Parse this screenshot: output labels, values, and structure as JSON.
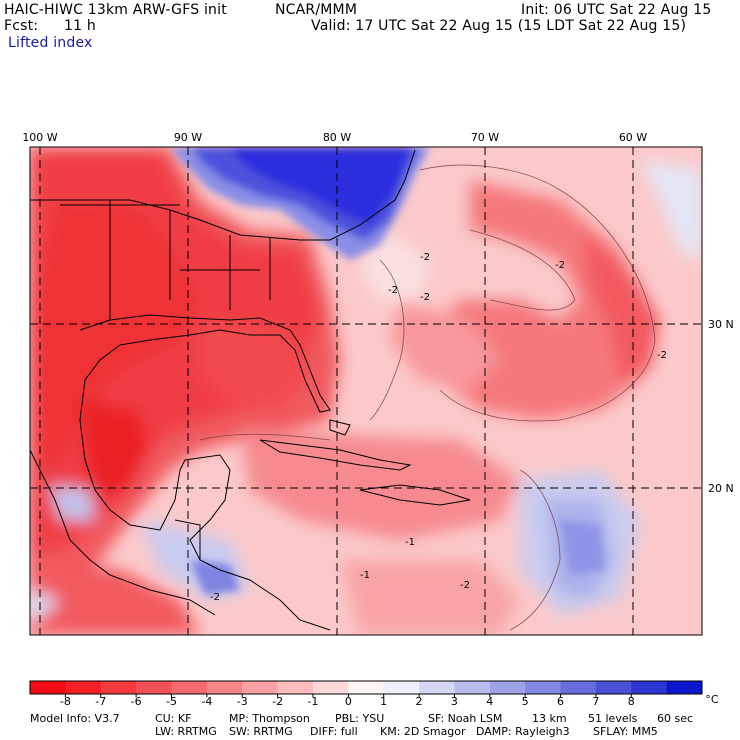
{
  "header": {
    "model_title": "HAIC-HIWC 13km ARW-GFS init",
    "agency": "NCAR/MMM",
    "init": "Init: 06 UTC Sat 22 Aug 15",
    "fcst_label": "Fcst:",
    "fcst_value": "11 h",
    "valid": "Valid: 17 UTC Sat 22 Aug 15 (15 LDT Sat 22 Aug 15)",
    "field": "Lifted index"
  },
  "map": {
    "lon_labels": [
      "100 W",
      "90 W",
      "80 W",
      "70 W",
      "60 W"
    ],
    "lat_labels": [
      "30 N",
      "20 N"
    ],
    "contour_labels": [
      "-2",
      "-2",
      "-2",
      "-2",
      "-2",
      "-1",
      "-2",
      "-1",
      "-2"
    ],
    "colors": {
      "strong_neg": "#f0282e",
      "neg": "#f55a5e",
      "mid_neg": "#f88e90",
      "light_neg": "#fbc2c3",
      "neutral": "#ffe6e6",
      "light_pos": "#d6d8f2",
      "pos": "#8c90e6",
      "strong_pos": "#2c2fe0"
    }
  },
  "colorbar": {
    "labels": [
      "-8",
      "-7",
      "-6",
      "-5",
      "-4",
      "-3",
      "-2",
      "-1",
      "0",
      "1",
      "2",
      "3",
      "4",
      "5",
      "6",
      "7",
      "8"
    ],
    "unit": "°C",
    "colors": [
      "#f80a14",
      "#f51f26",
      "#f33a3e",
      "#f25257",
      "#f46a6e",
      "#f6858a",
      "#f8a0a3",
      "#fbbcbe",
      "#fdd8d9",
      "#fff4f4",
      "#eef0fb",
      "#d4d7f4",
      "#b9bdee",
      "#9ea3e8",
      "#8388e2",
      "#676ddc",
      "#4a51d7",
      "#2c35d1",
      "#0c17cc"
    ]
  },
  "model_info": {
    "row1": [
      "Model Info: V3.7",
      "CU: KF",
      "MP: Thompson",
      "PBL: YSU",
      "SF: Noah LSM",
      "13 km",
      "51 levels",
      "60 sec"
    ],
    "row2": [
      "LW: RRTMG",
      "SW: RRTMG",
      "DIFF: full",
      "KM: 2D Smagor",
      "DAMP: Rayleigh3",
      "SFLAY: MM5"
    ]
  }
}
